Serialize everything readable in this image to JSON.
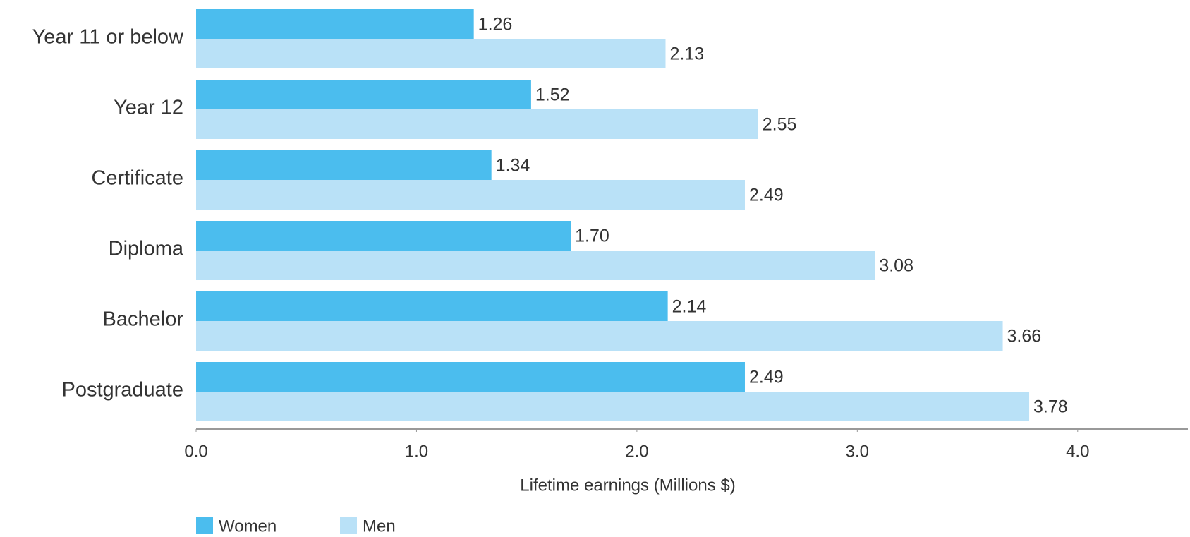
{
  "chart_data": {
    "type": "hbar",
    "categories": [
      "Year 11 or below",
      "Year 12",
      "Certificate",
      "Diploma",
      "Bachelor",
      "Postgraduate"
    ],
    "series": [
      {
        "name": "Women",
        "color": "#4bbdee",
        "values": [
          1.26,
          1.52,
          1.34,
          1.7,
          2.14,
          2.49
        ],
        "value_labels": [
          "1.26",
          "1.52",
          "1.34",
          "1.70",
          "2.14",
          "2.49"
        ]
      },
      {
        "name": "Men",
        "color": "#b9e1f7",
        "values": [
          2.13,
          2.55,
          2.49,
          3.08,
          3.66,
          3.78
        ],
        "value_labels": [
          "2.13",
          "2.55",
          "2.49",
          "3.08",
          "3.66",
          "3.78"
        ]
      }
    ],
    "xlabel": "Lifetime earnings (Millions $)",
    "xlim": [
      0,
      4.5
    ],
    "xticks": [
      {
        "value": 0,
        "label": "0.0"
      },
      {
        "value": 1,
        "label": "1.0"
      },
      {
        "value": 2,
        "label": "2.0"
      },
      {
        "value": 3,
        "label": "3.0"
      },
      {
        "value": 4,
        "label": "4.0"
      }
    ],
    "legend": "bottom-left"
  }
}
